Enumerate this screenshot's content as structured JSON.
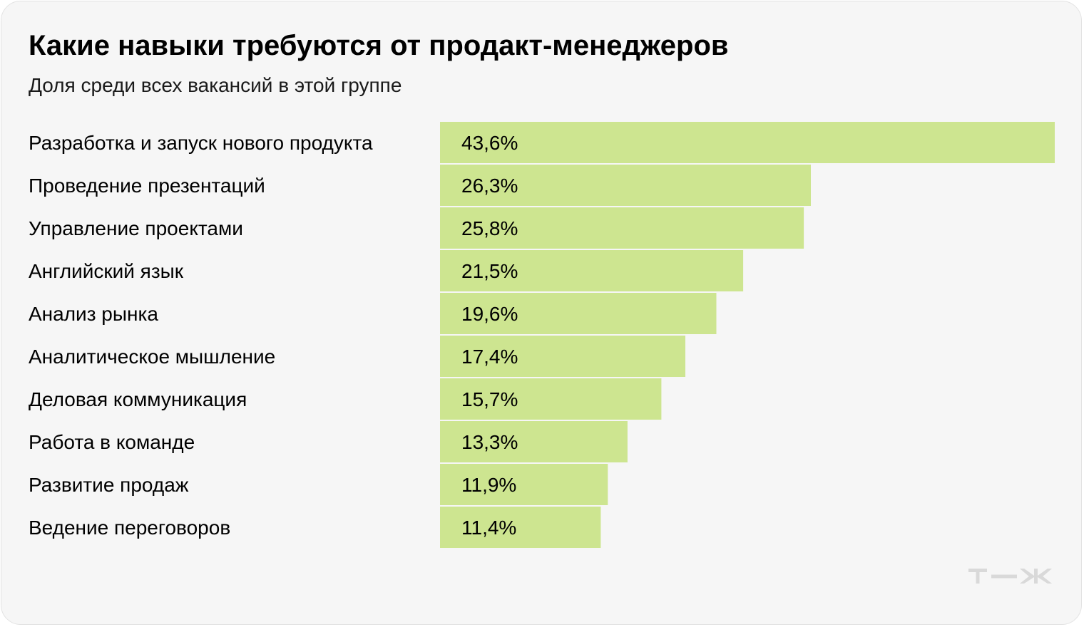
{
  "title": "Какие навыки требуются от продакт-менеджеров",
  "subtitle": "Доля среди всех вакансий в этой группе",
  "logo_text": "Т—Ж",
  "colors": {
    "bar": "#cde590",
    "background": "#f6f6f6",
    "text": "#000000",
    "logo": "#d9d9d9"
  },
  "chart_data": {
    "type": "bar",
    "orientation": "horizontal",
    "title": "Какие навыки требуются от продакт-менеджеров",
    "subtitle": "Доля среди всех вакансий в этой группе",
    "categories": [
      "Разработка и запуск нового продукта",
      "Проведение презентаций",
      "Управление проектами",
      "Английский язык",
      "Анализ рынка",
      "Аналитическое мышление",
      "Деловая коммуникация",
      "Работа в команде",
      "Развитие продаж",
      "Ведение переговоров"
    ],
    "values": [
      43.6,
      26.3,
      25.8,
      21.5,
      19.6,
      17.4,
      15.7,
      13.3,
      11.9,
      11.4
    ],
    "value_labels": [
      "43,6%",
      "26,3%",
      "25,8%",
      "21,5%",
      "19,6%",
      "17,4%",
      "15,7%",
      "13,3%",
      "11,9%",
      "11,4%"
    ],
    "unit": "%",
    "xlim": [
      0,
      43.6
    ],
    "grid": false,
    "legend": false
  }
}
